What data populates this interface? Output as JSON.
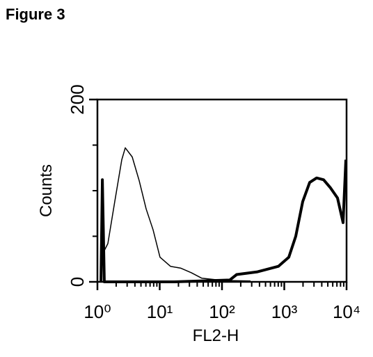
{
  "figure_title": "Figure 3",
  "chart_data": {
    "type": "line",
    "xscale": "log",
    "xlabel": "FL2-H",
    "ylabel": "Counts",
    "xlim": [
      1,
      10000
    ],
    "ylim": [
      0,
      200
    ],
    "xticks": [
      {
        "value": 1,
        "label": "10⁰"
      },
      {
        "value": 10,
        "label": "10¹"
      },
      {
        "value": 100,
        "label": "10²"
      },
      {
        "value": 1000,
        "label": "10³"
      },
      {
        "value": 10000,
        "label": "10⁴"
      }
    ],
    "xminorticks": [
      2,
      3,
      4,
      5,
      6,
      7,
      8,
      9,
      20,
      30,
      40,
      50,
      60,
      70,
      80,
      90,
      200,
      300,
      400,
      500,
      600,
      700,
      800,
      900,
      2000,
      3000,
      4000,
      5000,
      6000,
      7000,
      8000,
      9000
    ],
    "yticks": [
      0,
      200
    ],
    "yminorticks": [
      50,
      100,
      150
    ],
    "series": [
      {
        "color": "#000000",
        "width": 1.5,
        "x": [
          1.14,
          1.47,
          1.9,
          2.46,
          2.8,
          3.62,
          4.68,
          6.05,
          7.83,
          10.1,
          14.9,
          21.9,
          32.2,
          47.4,
          103,
          287
        ],
        "values": [
          27,
          42,
          88,
          134,
          147,
          137,
          111,
          80,
          57,
          27,
          17,
          15,
          10,
          4,
          1.5,
          1
        ]
      },
      {
        "color": "#000000",
        "width": 4,
        "x": [
          1.14,
          1.2,
          1.29,
          16.9,
          133,
          172,
          371,
          804,
          1182,
          1528,
          1977,
          2557,
          3311,
          4277,
          5534,
          7161,
          8790,
          9750
        ],
        "values": [
          0,
          112,
          0,
          0,
          2,
          8,
          11,
          17,
          27,
          50,
          88,
          109,
          114,
          112,
          103,
          92,
          65,
          134
        ]
      }
    ]
  }
}
